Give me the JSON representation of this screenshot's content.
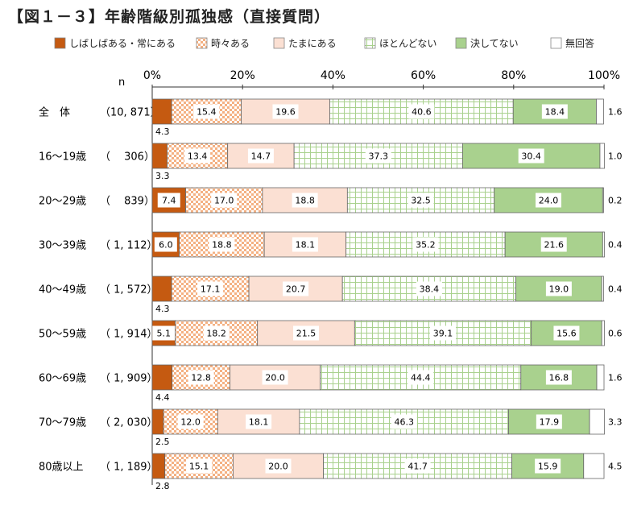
{
  "title": "【図１－３】年齢階級別孤独感（直接質問）",
  "chart_data": {
    "type": "bar",
    "orientation": "horizontal",
    "stacked": true,
    "percent": true,
    "n_header": "n",
    "xlim": [
      0,
      100
    ],
    "x_ticks": [
      "0%",
      "20%",
      "40%",
      "60%",
      "80%",
      "100%"
    ],
    "legend_position": "top",
    "categories": [
      "全　体",
      "16～19歳",
      "20～29歳",
      "30～39歳",
      "40～49歳",
      "50～59歳",
      "60～69歳",
      "70～79歳",
      "80歳以上"
    ],
    "n_labels": [
      "（10, 871）",
      "（　 306）",
      "（　 839）",
      "（ 1, 112）",
      "（ 1, 572）",
      "（ 1, 914）",
      "（ 1, 909）",
      "（ 2, 030）",
      "（ 1, 189）"
    ],
    "series": [
      {
        "name": "しばしばある・常にある",
        "color": "#c55a11",
        "pattern": "solid",
        "values": [
          4.3,
          3.3,
          7.4,
          6.0,
          4.3,
          5.1,
          4.4,
          2.5,
          2.8
        ]
      },
      {
        "name": "時々ある",
        "color": "#f4b183",
        "pattern": "check",
        "values": [
          15.4,
          13.4,
          17.0,
          18.8,
          17.1,
          18.2,
          12.8,
          12.0,
          15.1
        ]
      },
      {
        "name": "たまにある",
        "color": "#fbe0d3",
        "pattern": "solid",
        "values": [
          19.6,
          14.7,
          18.8,
          18.1,
          20.7,
          21.5,
          20.0,
          18.1,
          20.0
        ]
      },
      {
        "name": "ほとんどない",
        "color": "#a9d18e",
        "pattern": "grid",
        "values": [
          40.6,
          37.3,
          32.5,
          35.2,
          38.4,
          39.1,
          44.4,
          46.3,
          41.7
        ]
      },
      {
        "name": "決してない",
        "color": "#a9d18e",
        "pattern": "solid",
        "values": [
          18.4,
          30.4,
          24.0,
          21.6,
          19.0,
          15.6,
          16.8,
          17.9,
          15.9
        ]
      },
      {
        "name": "無回答",
        "color": "#ffffff",
        "pattern": "solid",
        "values": [
          1.6,
          1.0,
          0.2,
          0.4,
          0.4,
          0.6,
          1.6,
          3.3,
          4.5
        ]
      }
    ]
  }
}
